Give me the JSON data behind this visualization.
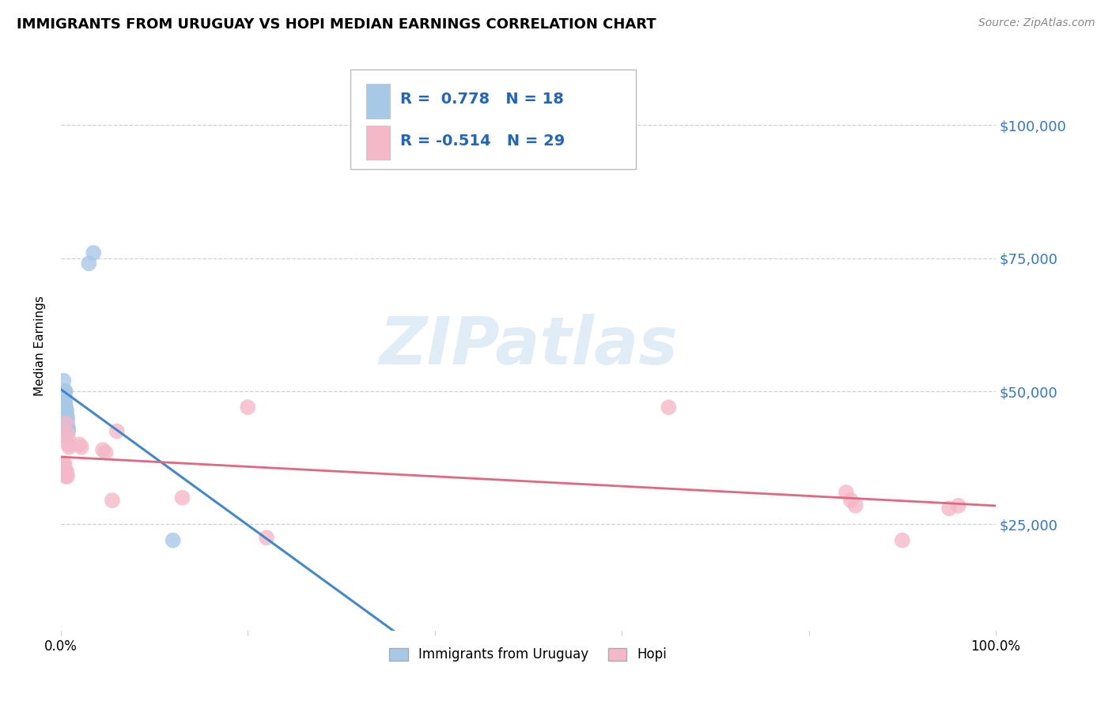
{
  "title": "IMMIGRANTS FROM URUGUAY VS HOPI MEDIAN EARNINGS CORRELATION CHART",
  "source": "Source: ZipAtlas.com",
  "ylabel": "Median Earnings",
  "legend_label1": "Immigrants from Uruguay",
  "legend_label2": "Hopi",
  "watermark": "ZIPatlas",
  "blue_color": "#a8c8e8",
  "pink_color": "#f4b8c8",
  "blue_line_color": "#4488cc",
  "pink_line_color": "#e06880",
  "ytick_labels": [
    "$25,000",
    "$50,000",
    "$75,000",
    "$100,000"
  ],
  "ytick_values": [
    25000,
    50000,
    75000,
    100000
  ],
  "ymin": 5000,
  "ymax": 112000,
  "xmin": 0.0,
  "xmax": 1.0,
  "blue_points": [
    [
      0.003,
      52000
    ],
    [
      0.004,
      50000
    ],
    [
      0.004,
      49500
    ],
    [
      0.005,
      50000
    ],
    [
      0.005,
      48500
    ],
    [
      0.005,
      47500
    ],
    [
      0.005,
      47000
    ],
    [
      0.006,
      46500
    ],
    [
      0.006,
      46000
    ],
    [
      0.006,
      45500
    ],
    [
      0.007,
      45000
    ],
    [
      0.007,
      44000
    ],
    [
      0.007,
      43000
    ],
    [
      0.008,
      43000
    ],
    [
      0.008,
      42500
    ],
    [
      0.03,
      74000
    ],
    [
      0.035,
      76000
    ],
    [
      0.12,
      22000
    ]
  ],
  "pink_points": [
    [
      0.003,
      36000
    ],
    [
      0.004,
      36500
    ],
    [
      0.004,
      35000
    ],
    [
      0.005,
      44000
    ],
    [
      0.005,
      35000
    ],
    [
      0.005,
      34000
    ],
    [
      0.006,
      34500
    ],
    [
      0.006,
      35000
    ],
    [
      0.007,
      34000
    ],
    [
      0.007,
      42000
    ],
    [
      0.008,
      41000
    ],
    [
      0.008,
      40000
    ],
    [
      0.009,
      39500
    ],
    [
      0.02,
      40000
    ],
    [
      0.022,
      39500
    ],
    [
      0.045,
      39000
    ],
    [
      0.048,
      38500
    ],
    [
      0.055,
      29500
    ],
    [
      0.06,
      42500
    ],
    [
      0.13,
      30000
    ],
    [
      0.2,
      47000
    ],
    [
      0.22,
      22500
    ],
    [
      0.65,
      47000
    ],
    [
      0.84,
      31000
    ],
    [
      0.845,
      29500
    ],
    [
      0.85,
      28500
    ],
    [
      0.9,
      22000
    ],
    [
      0.95,
      28000
    ],
    [
      0.96,
      28500
    ]
  ],
  "legend_line1": "R =  0.778   N = 18",
  "legend_line2": "R = -0.514   N = 29"
}
